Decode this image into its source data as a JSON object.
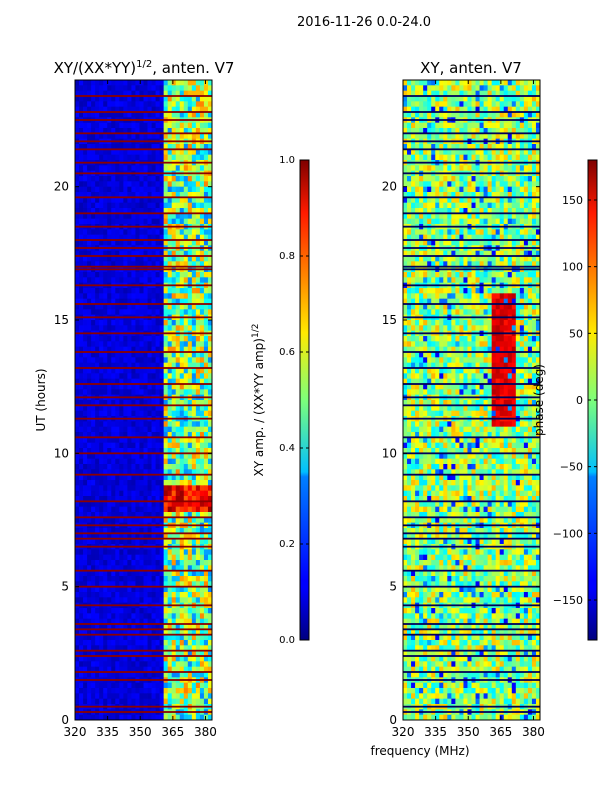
{
  "figure": {
    "suptitle": "2016-11-26 0.0-24.0",
    "xlabel": "frequency (MHz)"
  },
  "chart_data": [
    {
      "type": "heatmap",
      "title_base": "XY/(XX*YY)",
      "title_exp": "1/2",
      "title_suffix": ", anten. V7",
      "xlabel": "",
      "ylabel": "UT (hours)",
      "xlim": [
        320,
        383
      ],
      "ylim": [
        0,
        24
      ],
      "xticks": [
        320,
        335,
        350,
        365,
        380
      ],
      "yticks": [
        0,
        5,
        10,
        15,
        20
      ],
      "colorbar": {
        "label_base": "XY amp. / (XX*YY amp)",
        "label_exp": "1/2",
        "range": [
          0.0,
          1.0
        ],
        "ticks": [
          "0.0",
          "0.2",
          "0.4",
          "0.6",
          "0.8",
          "1.0"
        ],
        "colormap": "jet"
      },
      "gap_rows_hours": [
        0.3,
        0.5,
        1.5,
        1.8,
        2.4,
        2.6,
        3.2,
        3.4,
        3.6,
        4.3,
        5.0,
        5.6,
        6.5,
        6.8,
        7.0,
        7.3,
        7.6,
        8.2,
        9.2,
        10.0,
        10.6,
        11.3,
        11.8,
        12.1,
        12.6,
        13.2,
        13.8,
        14.5,
        15.1,
        15.6,
        16.3,
        16.9,
        17.0,
        17.4,
        17.7,
        18.0,
        18.5,
        19.0,
        19.6,
        20.5,
        20.9,
        21.4,
        21.7,
        22.0,
        22.5,
        22.8,
        23.4
      ]
    },
    {
      "type": "heatmap",
      "title_base": "XY, anten. V7",
      "xlabel": "",
      "ylabel": "",
      "xlim": [
        320,
        383
      ],
      "ylim": [
        0,
        24
      ],
      "xticks": [
        320,
        335,
        350,
        365,
        380
      ],
      "yticks": [
        0,
        5,
        10,
        15,
        20
      ],
      "colorbar": {
        "label": "phase (deg)",
        "range": [
          -180,
          180
        ],
        "ticks": [
          "−150",
          "−100",
          "−50",
          "0",
          "50",
          "100",
          "150"
        ],
        "colormap": "jet"
      },
      "gap_rows_hours": [
        0.3,
        0.5,
        1.5,
        1.8,
        2.4,
        2.6,
        3.2,
        3.4,
        3.6,
        4.3,
        5.0,
        5.6,
        6.5,
        6.8,
        7.0,
        7.3,
        7.6,
        8.2,
        9.2,
        10.0,
        10.6,
        11.3,
        11.8,
        12.1,
        12.6,
        13.2,
        13.8,
        14.5,
        15.1,
        15.6,
        16.3,
        16.9,
        17.0,
        17.4,
        17.7,
        18.0,
        18.5,
        19.0,
        19.6,
        20.5,
        20.9,
        21.4,
        21.7,
        22.0,
        22.5,
        22.8,
        23.4
      ]
    }
  ]
}
